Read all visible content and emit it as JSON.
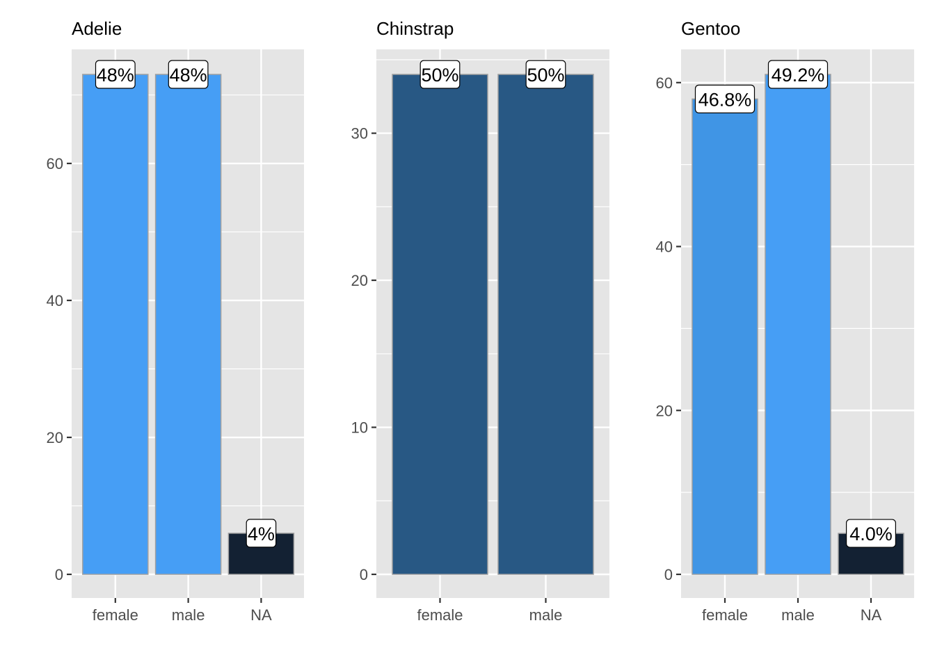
{
  "chart_data": [
    {
      "type": "bar",
      "title": "Adelie",
      "categories": [
        "female",
        "male",
        "NA"
      ],
      "values": [
        73,
        73,
        6
      ],
      "labels": [
        "48%",
        "48%",
        "4%"
      ],
      "colors": [
        "#469ef5",
        "#469ef5",
        "#132133"
      ],
      "ylim": [
        0,
        76
      ],
      "yticks": [
        0,
        20,
        40,
        60
      ],
      "ytick_labels": [
        "0",
        "20",
        "40",
        "60"
      ],
      "grid": true
    },
    {
      "type": "bar",
      "title": "Chinstrap",
      "categories": [
        "female",
        "male"
      ],
      "values": [
        34,
        34
      ],
      "labels": [
        "50%",
        "50%"
      ],
      "colors": [
        "#285884",
        "#285884"
      ],
      "ylim": [
        0,
        36
      ],
      "yticks": [
        0,
        10,
        20,
        30
      ],
      "ytick_labels": [
        "0",
        "10",
        "20",
        "30"
      ],
      "grid": true
    },
    {
      "type": "bar",
      "title": "Gentoo",
      "categories": [
        "female",
        "male",
        "NA"
      ],
      "values": [
        58,
        61,
        5
      ],
      "labels": [
        "46.8%",
        "49.2%",
        "4.0%"
      ],
      "colors": [
        "#4095e5",
        "#469ef5",
        "#132133"
      ],
      "ylim": [
        0,
        63
      ],
      "yticks": [
        0,
        20,
        40,
        60
      ],
      "ytick_labels": [
        "0",
        "20",
        "40",
        "60"
      ],
      "grid": true
    }
  ],
  "style": {
    "panel_background": "#e5e5e5",
    "grid_color": "#ffffff",
    "bar_outline": "#a0a0a0",
    "label_box_fill": "#ffffff",
    "label_box_stroke": "#000000",
    "tick_color": "#333333"
  }
}
